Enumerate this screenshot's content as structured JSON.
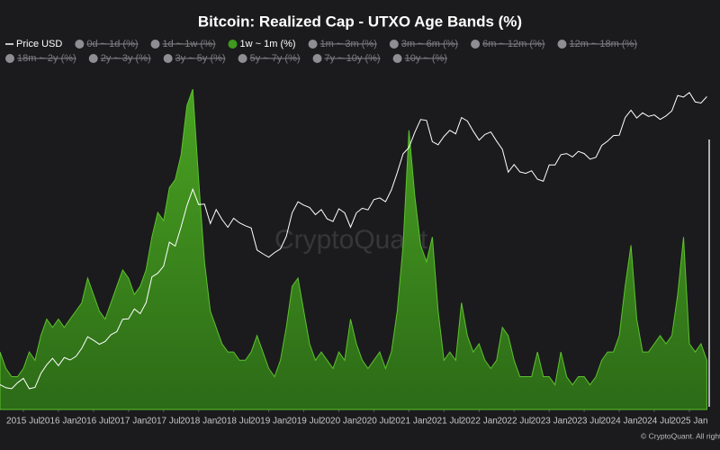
{
  "chart_data": {
    "type": "area",
    "title": "Bitcoin: Realized Cap - UTXO Age Bands (%)",
    "watermark": "CryptoQuant",
    "credit": "© CryptoQuant. All rights re",
    "x": [
      "2015-03",
      "2015-04",
      "2015-05",
      "2015-06",
      "2015-07",
      "2015-08",
      "2015-09",
      "2015-10",
      "2015-11",
      "2015-12",
      "2016-01",
      "2016-02",
      "2016-03",
      "2016-04",
      "2016-05",
      "2016-06",
      "2016-07",
      "2016-08",
      "2016-09",
      "2016-10",
      "2016-11",
      "2016-12",
      "2017-01",
      "2017-02",
      "2017-03",
      "2017-04",
      "2017-05",
      "2017-06",
      "2017-07",
      "2017-08",
      "2017-09",
      "2017-10",
      "2017-11",
      "2017-12",
      "2018-01",
      "2018-02",
      "2018-03",
      "2018-04",
      "2018-05",
      "2018-06",
      "2018-07",
      "2018-08",
      "2018-09",
      "2018-10",
      "2018-11",
      "2018-12",
      "2019-01",
      "2019-02",
      "2019-03",
      "2019-04",
      "2019-05",
      "2019-06",
      "2019-07",
      "2019-08",
      "2019-09",
      "2019-10",
      "2019-11",
      "2019-12",
      "2020-01",
      "2020-02",
      "2020-03",
      "2020-04",
      "2020-05",
      "2020-06",
      "2020-07",
      "2020-08",
      "2020-09",
      "2020-10",
      "2020-11",
      "2020-12",
      "2021-01",
      "2021-02",
      "2021-03",
      "2021-04",
      "2021-05",
      "2021-06",
      "2021-07",
      "2021-08",
      "2021-09",
      "2021-10",
      "2021-11",
      "2021-12",
      "2022-01",
      "2022-02",
      "2022-03",
      "2022-04",
      "2022-05",
      "2022-06",
      "2022-07",
      "2022-08",
      "2022-09",
      "2022-10",
      "2022-11",
      "2022-12",
      "2023-01",
      "2023-02",
      "2023-03",
      "2023-04",
      "2023-05",
      "2023-06",
      "2023-07",
      "2023-08",
      "2023-09",
      "2023-10",
      "2023-11",
      "2023-12",
      "2024-01",
      "2024-02",
      "2024-03",
      "2024-04",
      "2024-05",
      "2024-06",
      "2024-07",
      "2024-08",
      "2024-09",
      "2024-10",
      "2024-11",
      "2024-12",
      "2025-01",
      "2025-02",
      "2025-03",
      "2025-04"
    ],
    "xticks": [
      {
        "value": "2015-07",
        "label": "2015 Jul"
      },
      {
        "value": "2016-01",
        "label": "2016 Jan"
      },
      {
        "value": "2016-07",
        "label": "2016 Jul"
      },
      {
        "value": "2017-01",
        "label": "2017 Jan"
      },
      {
        "value": "2017-07",
        "label": "2017 Jul"
      },
      {
        "value": "2018-01",
        "label": "2018 Jan"
      },
      {
        "value": "2018-07",
        "label": "2018 Jul"
      },
      {
        "value": "2019-01",
        "label": "2019 Jan"
      },
      {
        "value": "2019-07",
        "label": "2019 Jul"
      },
      {
        "value": "2020-01",
        "label": "2020 Jan"
      },
      {
        "value": "2020-07",
        "label": "2020 Jul"
      },
      {
        "value": "2021-01",
        "label": "2021 Jan"
      },
      {
        "value": "2021-07",
        "label": "2021 Jul"
      },
      {
        "value": "2022-01",
        "label": "2022 Jan"
      },
      {
        "value": "2022-07",
        "label": "2022 Jul"
      },
      {
        "value": "2023-01",
        "label": "2023 Jan"
      },
      {
        "value": "2023-07",
        "label": "2023 Jul"
      },
      {
        "value": "2024-01",
        "label": "2024 Jan"
      },
      {
        "value": "2024-07",
        "label": "2024 Jul"
      },
      {
        "value": "2025-01",
        "label": "2025 Jan"
      }
    ],
    "ylim": [
      0,
      20
    ],
    "y2lim": [
      150,
      130000
    ],
    "y2log": true,
    "series": [
      {
        "name": "Price USD",
        "color": "#ffffff",
        "axis": "y2",
        "visible": true,
        "values": [
          250,
          235,
          230,
          260,
          285,
          230,
          236,
          315,
          377,
          430,
          370,
          437,
          416,
          448,
          530,
          670,
          624,
          575,
          608,
          700,
          745,
          963,
          970,
          1190,
          1080,
          1350,
          2300,
          2480,
          2870,
          4700,
          4340,
          6450,
          10000,
          14000,
          10200,
          10300,
          6900,
          9200,
          7500,
          6400,
          7700,
          7000,
          6600,
          6300,
          4000,
          3700,
          3450,
          3800,
          4100,
          5300,
          8600,
          10800,
          10100,
          9600,
          8300,
          9200,
          7600,
          7200,
          9350,
          8600,
          6400,
          8600,
          9450,
          9150,
          11300,
          11700,
          10800,
          13800,
          19700,
          29000,
          33100,
          45100,
          58800,
          57700,
          37300,
          35000,
          41500,
          47100,
          43800,
          61300,
          57000,
          46300,
          38500,
          43200,
          45500,
          37700,
          31800,
          19900,
          23300,
          20000,
          19400,
          20500,
          17200,
          16500,
          23100,
          23100,
          28500,
          29200,
          27200,
          30500,
          29200,
          26000,
          27000,
          34500,
          37700,
          42300,
          42600,
          61200,
          71300,
          60700,
          67500,
          62700,
          64600,
          58900,
          63300,
          70200,
          96400,
          93400,
          102400,
          84400,
          82500,
          94200
        ]
      },
      {
        "name": "0d ~ 1d (%)",
        "visible": false
      },
      {
        "name": "1d ~ 1w (%)",
        "visible": false
      },
      {
        "name": "1w ~ 1m (%)",
        "color": "#3f9a1f",
        "visible": true,
        "values": [
          3.5,
          2.5,
          2.0,
          2.0,
          2.5,
          3.5,
          3.0,
          4.5,
          5.5,
          5.0,
          5.5,
          5.0,
          5.5,
          6.0,
          6.5,
          8.0,
          7.0,
          6.0,
          5.5,
          6.5,
          7.5,
          8.5,
          8.0,
          7.0,
          7.5,
          8.5,
          10.5,
          12.0,
          11.5,
          13.5,
          14.0,
          15.5,
          18.5,
          19.5,
          14.0,
          9.0,
          6.0,
          5.0,
          4.0,
          3.5,
          3.5,
          3.0,
          3.0,
          3.5,
          4.5,
          3.5,
          2.5,
          2.0,
          3.0,
          5.0,
          7.5,
          8.0,
          6.0,
          4.0,
          3.0,
          3.5,
          3.0,
          2.5,
          3.5,
          3.0,
          5.5,
          4.0,
          3.0,
          2.5,
          3.0,
          3.5,
          2.5,
          3.5,
          6.0,
          10.0,
          17.0,
          13.0,
          10.0,
          9.0,
          10.5,
          6.0,
          3.0,
          3.5,
          3.0,
          6.5,
          4.5,
          3.5,
          4.0,
          3.0,
          2.5,
          3.0,
          5.0,
          4.5,
          3.0,
          2.0,
          2.0,
          2.0,
          3.5,
          2.0,
          2.0,
          1.5,
          3.5,
          2.0,
          1.5,
          2.0,
          2.0,
          1.5,
          2.0,
          3.0,
          3.5,
          3.5,
          4.5,
          7.5,
          10.0,
          5.5,
          3.5,
          3.5,
          4.0,
          4.5,
          4.0,
          4.5,
          7.0,
          10.5,
          4.0,
          3.5,
          4.0,
          3.0
        ]
      },
      {
        "name": "1m ~ 3m (%)",
        "visible": false
      },
      {
        "name": "3m ~ 6m (%)",
        "visible": false
      },
      {
        "name": "6m ~ 12m (%)",
        "visible": false
      },
      {
        "name": "12m ~ 18m (%)",
        "visible": false
      },
      {
        "name": "18m ~ 2y (%)",
        "visible": false
      },
      {
        "name": "2y ~ 3y (%)",
        "visible": false
      },
      {
        "name": "3y ~ 5y (%)",
        "visible": false
      },
      {
        "name": "5y ~ 7y (%)",
        "visible": false
      },
      {
        "name": "7y ~ 10y (%)",
        "visible": false
      },
      {
        "name": "10y ~ (%)",
        "visible": false
      }
    ]
  }
}
